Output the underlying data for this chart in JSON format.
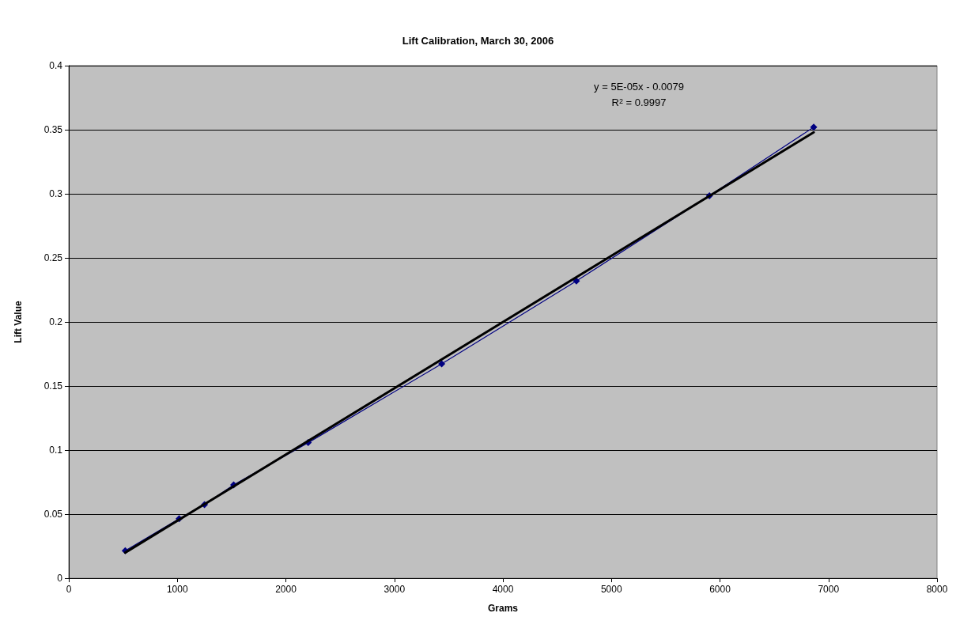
{
  "chart_data": {
    "type": "line",
    "title": "Lift Calibration, March 30, 2006",
    "xlabel": "Grams",
    "ylabel": "Lift Value",
    "series": [
      {
        "color": "#000080",
        "marker": "diamond",
        "x": [
          520,
          1017,
          1250,
          1519,
          2206,
          3436,
          4677,
          5903,
          6864
        ],
        "values": [
          0.0214,
          0.0465,
          0.0574,
          0.0728,
          0.1058,
          0.1673,
          0.232,
          0.2985,
          0.352
        ]
      },
      {
        "color": "#000000",
        "marker": "none",
        "x": [
          520,
          6864
        ],
        "values": [
          0.02,
          0.348
        ]
      }
    ],
    "annotations": [
      "y = 5E-05x - 0.0079",
      "R$^{2}$ = 0.9997"
    ],
    "xlim": [
      0,
      8000
    ],
    "xticks": [
      0,
      1000,
      2000,
      3000,
      4000,
      5000,
      6000,
      7000,
      8000
    ],
    "ylim": [
      0,
      0.4
    ],
    "yticks": [
      0,
      0.05,
      0.1,
      0.15,
      0.2,
      0.25,
      0.3,
      0.35,
      0.4
    ],
    "grid": "y"
  }
}
